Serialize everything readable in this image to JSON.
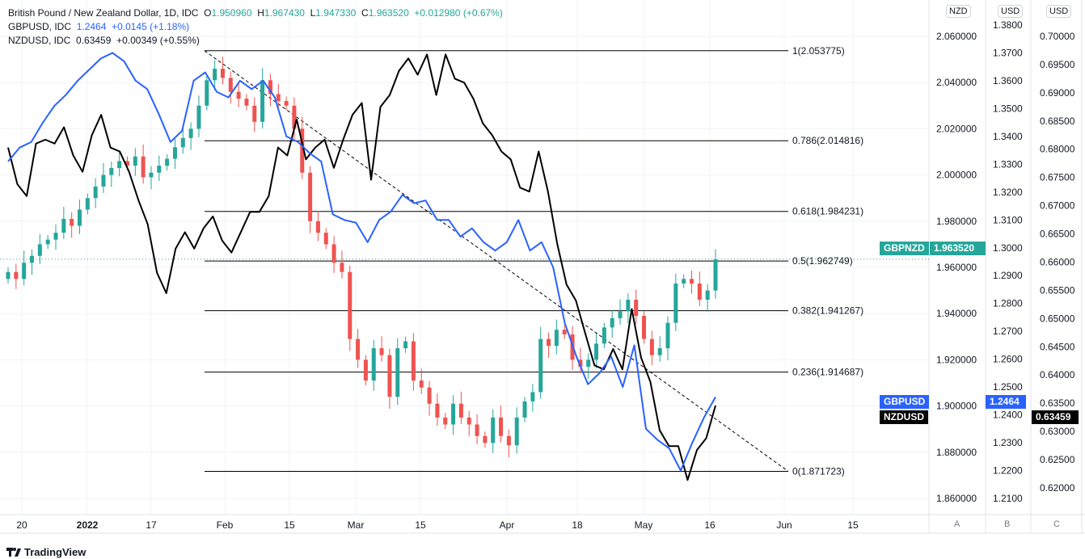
{
  "legend": {
    "main": {
      "title": "British Pound / New Zealand Dollar, 1D, IDC",
      "o_label": "O",
      "o": "1.950960",
      "h_label": "H",
      "h": "1.967430",
      "l_label": "L",
      "l": "1.947330",
      "c_label": "C",
      "c": "1.963520",
      "change": "+0.012980 (+0.67%)"
    },
    "gbpusd": {
      "title": "GBPUSD, IDC",
      "value": "1.2464",
      "change": "+0.0145 (+1.18%)"
    },
    "nzdusd": {
      "title": "NZDUSD, IDC",
      "value": "0.63459",
      "change": "+0.00349 (+0.55%)"
    }
  },
  "axes": {
    "unit_nzd": "NZD",
    "unit_usd1": "USD",
    "unit_usd2": "USD",
    "scale_a": "A",
    "scale_b": "B",
    "scale_c": "C"
  },
  "tags": {
    "gbpnzd_name": "GBPNZD",
    "gbpnzd_value": "1.963520",
    "gbpusd_name": "GBPUSD",
    "gbpusd_value": "1.2464",
    "nzdusd_name": "NZDUSD",
    "nzdusd_value": "0.63459"
  },
  "footer": {
    "brand": "TradingView"
  },
  "colors": {
    "up": "#26a69a",
    "down": "#ef5350",
    "gbpusd": "#2962ff",
    "nzdusd": "#000000"
  },
  "chart_data": {
    "type": "line",
    "title": "British Pound / New Zealand Dollar, 1D, IDC",
    "x_ticks": [
      "20",
      "2022",
      "17",
      "Feb",
      "15",
      "Mar",
      "15",
      "Apr",
      "18",
      "May",
      "16",
      "Jun",
      "15"
    ],
    "y_nzd": {
      "ticks": [
        "2.060000",
        "2.040000",
        "2.020000",
        "2.000000",
        "1.980000",
        "1.960000",
        "1.940000",
        "1.920000",
        "1.900000",
        "1.880000",
        "1.860000"
      ],
      "range": [
        1.853,
        2.073
      ]
    },
    "y_usd": {
      "ticks": [
        "1.3800",
        "1.3700",
        "1.3600",
        "1.3500",
        "1.3400",
        "1.3300",
        "1.3200",
        "1.3100",
        "1.3000",
        "1.2900",
        "1.2800",
        "1.2700",
        "1.2600",
        "1.2500",
        "1.2400",
        "1.2300",
        "1.2200",
        "1.2100"
      ]
    },
    "y_usd2": {
      "ticks": [
        "0.70000",
        "0.69500",
        "0.69000",
        "0.68500",
        "0.68000",
        "0.67500",
        "0.67000",
        "0.66500",
        "0.66000",
        "0.65500",
        "0.65000",
        "0.64500",
        "0.64000",
        "0.63500",
        "0.63000",
        "0.62500",
        "0.62000"
      ]
    },
    "gbpnzd_closes": [
      1.958,
      1.955,
      1.962,
      1.965,
      1.97,
      1.972,
      1.975,
      1.981,
      1.978,
      1.985,
      1.99,
      1.995,
      2.0,
      2.003,
      2.006,
      2.004,
      2.008,
      1.999,
      2.001,
      2.004,
      2.007,
      2.012,
      2.016,
      2.02,
      2.03,
      2.041,
      2.046,
      2.042,
      2.036,
      2.033,
      2.03,
      2.023,
      2.041,
      2.035,
      2.032,
      2.03,
      2.02,
      2.001,
      1.98,
      1.975,
      1.97,
      1.962,
      1.958,
      1.929,
      1.92,
      1.911,
      1.925,
      1.922,
      1.904,
      1.925,
      1.928,
      1.911,
      1.908,
      1.901,
      1.895,
      1.892,
      1.901,
      1.895,
      1.892,
      1.887,
      1.884,
      1.895,
      1.887,
      1.883,
      1.895,
      1.902,
      1.906,
      1.929,
      1.926,
      1.933,
      1.931,
      1.92,
      1.917,
      1.92,
      1.927,
      1.934,
      1.938,
      1.941,
      1.946,
      1.939,
      1.929,
      1.922,
      1.925,
      1.936,
      1.953,
      1.955,
      1.953,
      1.946,
      1.95,
      1.9635
    ],
    "gbpusd": [
      1.331,
      1.336,
      1.338,
      1.345,
      1.351,
      1.355,
      1.36,
      1.364,
      1.368,
      1.37,
      1.367,
      1.36,
      1.357,
      1.348,
      1.338,
      1.342,
      1.36,
      1.363,
      1.356,
      1.354,
      1.36,
      1.357,
      1.36,
      1.354,
      1.34,
      1.338,
      1.334,
      1.331,
      1.312,
      1.31,
      1.309,
      1.302,
      1.31,
      1.313,
      1.319,
      1.316,
      1.317,
      1.31,
      1.31,
      1.304,
      1.307,
      1.302,
      1.299,
      1.302,
      1.31,
      1.299,
      1.302,
      1.293,
      1.273,
      1.261,
      1.251,
      1.255,
      1.261,
      1.25,
      1.265,
      1.235,
      1.231,
      1.228,
      1.22,
      1.23,
      1.239,
      1.2464
    ],
    "nzdusd": [
      0.6803,
      0.6738,
      0.6717,
      0.681,
      0.6817,
      0.681,
      0.6839,
      0.6789,
      0.676,
      0.6825,
      0.6861,
      0.6803,
      0.6796,
      0.676,
      0.671,
      0.6667,
      0.6581,
      0.6545,
      0.6624,
      0.6653,
      0.6624,
      0.666,
      0.6681,
      0.6638,
      0.6617,
      0.6653,
      0.6689,
      0.6689,
      0.6717,
      0.6803,
      0.6789,
      0.6853,
      0.6782,
      0.6803,
      0.6817,
      0.6767,
      0.6817,
      0.6861,
      0.6882,
      0.6746,
      0.6875,
      0.6896,
      0.6939,
      0.6961,
      0.6932,
      0.6968,
      0.6896,
      0.6968,
      0.6925,
      0.6918,
      0.6889,
      0.6846,
      0.6825,
      0.6796,
      0.6782,
      0.6732,
      0.6725,
      0.6796,
      0.6725,
      0.6632,
      0.656,
      0.6532,
      0.6474,
      0.6417,
      0.641,
      0.6446,
      0.641,
      0.6517,
      0.6431,
      0.6388,
      0.6302,
      0.6274,
      0.6274,
      0.6214,
      0.6267,
      0.6288,
      0.63459
    ],
    "fib": {
      "levels": [
        "1(2.053775)",
        "0.786(2.014816)",
        "0.618(1.984231)",
        "0.5(1.962749)",
        "0.382(1.941267)",
        "0.236(1.914687)",
        "0(1.871723)"
      ],
      "values": [
        2.053775,
        2.014816,
        1.984231,
        1.962749,
        1.941267,
        1.914687,
        1.871723
      ]
    }
  }
}
